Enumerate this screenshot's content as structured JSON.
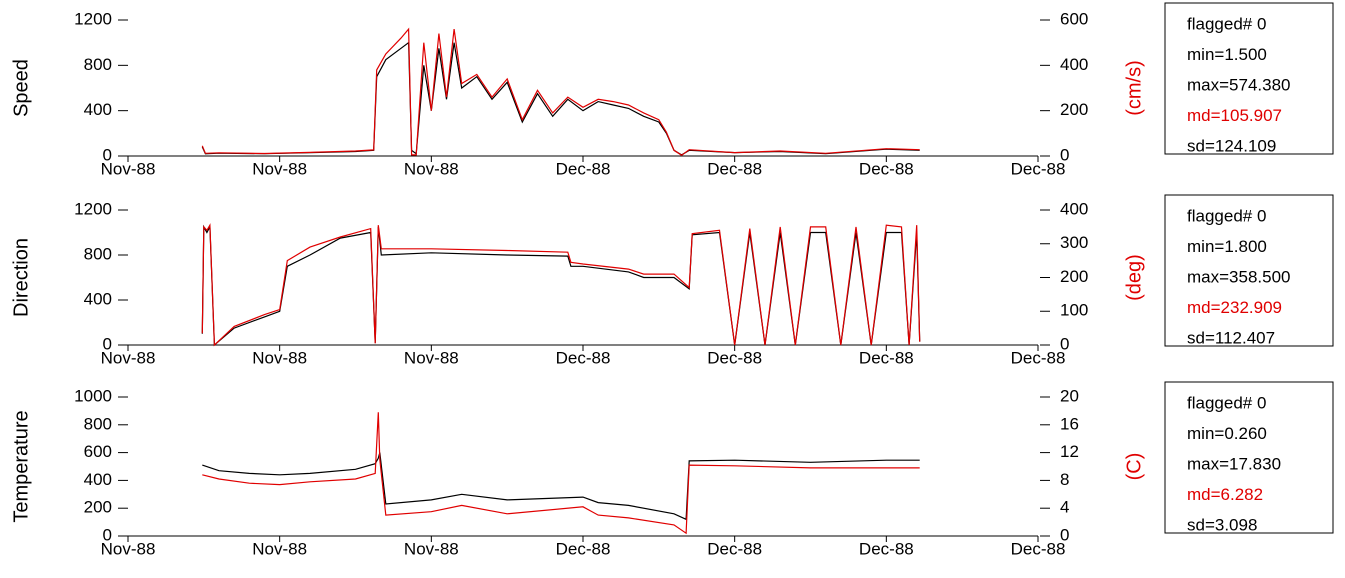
{
  "chart_data": [
    {
      "type": "line",
      "ylabel": "Speed",
      "y2label": "(cm/s)",
      "y2label_color": "#e00000",
      "xlim": [
        0,
        6
      ],
      "xticks": [
        {
          "value": 0,
          "label": "Nov-88"
        },
        {
          "value": 1,
          "label": "Nov-88"
        },
        {
          "value": 2,
          "label": "Nov-88"
        },
        {
          "value": 3,
          "label": "Dec-88"
        },
        {
          "value": 4,
          "label": "Dec-88"
        },
        {
          "value": 5,
          "label": "Dec-88"
        },
        {
          "value": 6,
          "label": "Dec-88"
        }
      ],
      "ylim": [
        0,
        1200
      ],
      "yticks": [
        0,
        400,
        800,
        1200
      ],
      "y2lim": [
        0,
        600
      ],
      "y2ticks": [
        0,
        200,
        400,
        600
      ],
      "x": [
        0.49,
        0.51,
        0.6,
        0.9,
        1.2,
        1.5,
        1.62,
        1.64,
        1.7,
        1.8,
        1.85,
        1.87,
        1.9,
        1.95,
        2.0,
        2.05,
        2.1,
        2.15,
        2.2,
        2.3,
        2.4,
        2.5,
        2.6,
        2.7,
        2.8,
        2.9,
        3.0,
        3.1,
        3.2,
        3.3,
        3.4,
        3.5,
        3.55,
        3.6,
        3.65,
        3.7,
        4.0,
        4.3,
        4.6,
        5.0,
        5.22
      ],
      "series": [
        {
          "color": "#000000",
          "values": [
            80,
            20,
            25,
            20,
            30,
            40,
            50,
            700,
            850,
            950,
            1000,
            50,
            20,
            800,
            400,
            950,
            500,
            1000,
            600,
            700,
            500,
            650,
            300,
            550,
            350,
            500,
            400,
            480,
            450,
            420,
            350,
            300,
            200,
            50,
            10,
            50,
            30,
            40,
            20,
            60,
            50
          ]
        },
        {
          "color": "#e00000",
          "axis": "y2",
          "values": [
            45,
            12,
            14,
            11,
            16,
            22,
            27,
            380,
            450,
            520,
            560,
            5,
            5,
            500,
            200,
            540,
            260,
            560,
            320,
            360,
            260,
            340,
            160,
            290,
            190,
            260,
            215,
            250,
            240,
            225,
            190,
            160,
            105,
            25,
            3,
            28,
            15,
            22,
            12,
            32,
            28
          ]
        }
      ],
      "stats": [
        {
          "text": "flagged# 0",
          "color": "#000000"
        },
        {
          "text": "min=1.500",
          "color": "#000000"
        },
        {
          "text": "max=574.380",
          "color": "#000000"
        },
        {
          "text": "md=105.907",
          "color": "#e00000"
        },
        {
          "text": "sd=124.109",
          "color": "#000000"
        }
      ]
    },
    {
      "type": "line",
      "ylabel": "Direction",
      "y2label": "(deg)",
      "y2label_color": "#e00000",
      "xlim": [
        0,
        6
      ],
      "xticks": [
        {
          "value": 0,
          "label": "Nov-88"
        },
        {
          "value": 1,
          "label": "Nov-88"
        },
        {
          "value": 2,
          "label": "Nov-88"
        },
        {
          "value": 3,
          "label": "Dec-88"
        },
        {
          "value": 4,
          "label": "Dec-88"
        },
        {
          "value": 5,
          "label": "Dec-88"
        },
        {
          "value": 6,
          "label": "Dec-88"
        }
      ],
      "ylim": [
        0,
        1200
      ],
      "yticks": [
        0,
        400,
        800,
        1200
      ],
      "y2lim": [
        0,
        400
      ],
      "y2ticks": [
        0,
        100,
        200,
        300,
        400
      ],
      "x": [
        0.49,
        0.5,
        0.52,
        0.54,
        0.57,
        0.7,
        0.9,
        1.0,
        1.05,
        1.2,
        1.4,
        1.6,
        1.63,
        1.65,
        1.67,
        2.0,
        2.5,
        2.9,
        2.92,
        3.0,
        3.3,
        3.4,
        3.6,
        3.7,
        3.72,
        3.9,
        4.0,
        4.1,
        4.2,
        4.3,
        4.4,
        4.5,
        4.6,
        4.7,
        4.8,
        4.9,
        5.0,
        5.1,
        5.15,
        5.2,
        5.22
      ],
      "series": [
        {
          "color": "#000000",
          "values": [
            100,
            1050,
            1000,
            1050,
            0,
            150,
            250,
            300,
            700,
            800,
            950,
            1000,
            20,
            1050,
            800,
            820,
            800,
            790,
            700,
            700,
            650,
            600,
            600,
            500,
            980,
            1000,
            0,
            1000,
            0,
            1000,
            0,
            1000,
            1000,
            0,
            1000,
            0,
            1000,
            1000,
            0,
            1000,
            30
          ]
        },
        {
          "color": "#e00000",
          "axis": "y2",
          "values": [
            35,
            350,
            340,
            355,
            0,
            55,
            90,
            105,
            250,
            290,
            320,
            345,
            5,
            355,
            285,
            285,
            280,
            275,
            245,
            240,
            225,
            210,
            210,
            170,
            330,
            340,
            0,
            345,
            0,
            350,
            0,
            350,
            350,
            0,
            350,
            0,
            355,
            350,
            0,
            355,
            10
          ]
        }
      ],
      "stats": [
        {
          "text": "flagged# 0",
          "color": "#000000"
        },
        {
          "text": "min=1.800",
          "color": "#000000"
        },
        {
          "text": "max=358.500",
          "color": "#000000"
        },
        {
          "text": "md=232.909",
          "color": "#e00000"
        },
        {
          "text": "sd=112.407",
          "color": "#000000"
        }
      ]
    },
    {
      "type": "line",
      "ylabel": "Temperature",
      "y2label": "(C)",
      "y2label_color": "#e00000",
      "xlim": [
        0,
        6
      ],
      "xticks": [
        {
          "value": 0,
          "label": "Nov-88"
        },
        {
          "value": 1,
          "label": "Nov-88"
        },
        {
          "value": 2,
          "label": "Nov-88"
        },
        {
          "value": 3,
          "label": "Dec-88"
        },
        {
          "value": 4,
          "label": "Dec-88"
        },
        {
          "value": 5,
          "label": "Dec-88"
        },
        {
          "value": 6,
          "label": "Dec-88"
        }
      ],
      "ylim": [
        0,
        1000
      ],
      "yticks": [
        0,
        200,
        400,
        600,
        800,
        1000
      ],
      "y2lim": [
        0,
        20
      ],
      "y2ticks": [
        0,
        4,
        8,
        12,
        16,
        20
      ],
      "x": [
        0.49,
        0.6,
        0.8,
        1.0,
        1.2,
        1.5,
        1.63,
        1.65,
        1.66,
        1.7,
        2.0,
        2.2,
        2.5,
        3.0,
        3.1,
        3.3,
        3.6,
        3.68,
        3.7,
        4.0,
        4.5,
        5.0,
        5.22
      ],
      "series": [
        {
          "color": "#000000",
          "values": [
            510,
            470,
            450,
            440,
            450,
            480,
            520,
            560,
            600,
            230,
            260,
            300,
            260,
            280,
            240,
            220,
            160,
            120,
            540,
            545,
            530,
            545,
            545
          ]
        },
        {
          "color": "#e00000",
          "axis": "y2",
          "values": [
            8.8,
            8.2,
            7.6,
            7.4,
            7.8,
            8.2,
            9,
            17.8,
            11,
            3,
            3.5,
            4.4,
            3.2,
            4.2,
            3,
            2.6,
            1.6,
            0.4,
            10.2,
            10.1,
            9.8,
            9.8,
            9.8
          ]
        }
      ],
      "stats": [
        {
          "text": "flagged# 0",
          "color": "#000000"
        },
        {
          "text": "min=0.260",
          "color": "#000000"
        },
        {
          "text": "max=17.830",
          "color": "#000000"
        },
        {
          "text": "md=6.282",
          "color": "#e00000"
        },
        {
          "text": "sd=3.098",
          "color": "#000000"
        }
      ]
    }
  ]
}
